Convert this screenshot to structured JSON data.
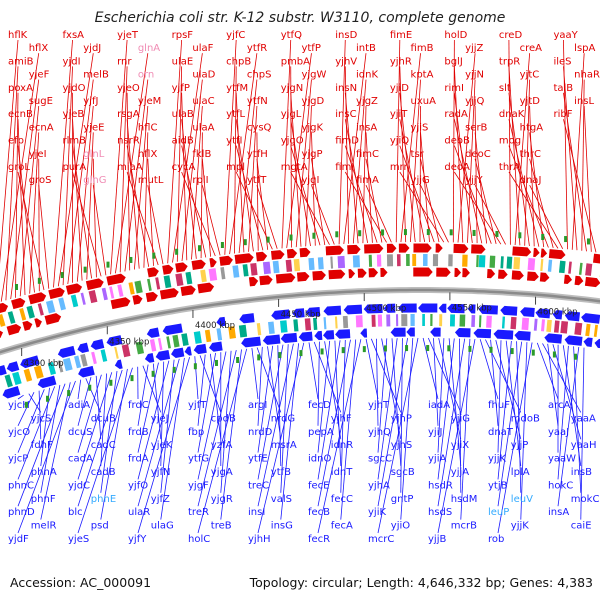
{
  "title": "Escherichia coli str. K-12 substr. W3110, complete genome",
  "footer": {
    "accession_label": "Accession: AC_000091",
    "stats": "Topology: circular; Length: 4,646,332 bp; Genes: 4,383"
  },
  "kbp_ticks": [
    "4300 kbp",
    "4350 kbp",
    "4400 kbp",
    "4450 kbp",
    "4500 kbp",
    "4550 kbp",
    "4600 kbp"
  ],
  "genes_top": [
    {
      "name": "hflK"
    },
    {
      "name": "hflX"
    },
    {
      "name": "amiB"
    },
    {
      "name": "yjeF"
    },
    {
      "name": "poxA"
    },
    {
      "name": "sugE"
    },
    {
      "name": "ecnB"
    },
    {
      "name": "ecnA"
    },
    {
      "name": "efp"
    },
    {
      "name": "yjeI"
    },
    {
      "name": "groL"
    },
    {
      "name": "groS"
    },
    {
      "name": "fxsA"
    },
    {
      "name": "yjdJ"
    },
    {
      "name": "yjdI"
    },
    {
      "name": "melB"
    },
    {
      "name": "yjdO"
    },
    {
      "name": "yjfJ"
    },
    {
      "name": "yjeB"
    },
    {
      "name": "yjeE"
    },
    {
      "name": "rlmB"
    },
    {
      "name": "glnL",
      "pale": true
    },
    {
      "name": "purA"
    },
    {
      "name": "glnG",
      "pale": true
    },
    {
      "name": "yjeT"
    },
    {
      "name": "glnA",
      "pale": true
    },
    {
      "name": "rnr"
    },
    {
      "name": "orn",
      "pale": true
    },
    {
      "name": "yjeO"
    },
    {
      "name": "yjeM"
    },
    {
      "name": "rsgA"
    },
    {
      "name": "hflC"
    },
    {
      "name": "nsrR"
    },
    {
      "name": "hflX"
    },
    {
      "name": "miaA"
    },
    {
      "name": "mutL"
    },
    {
      "name": "rpsF"
    },
    {
      "name": "ulaF"
    },
    {
      "name": "ulaE"
    },
    {
      "name": "ulaD"
    },
    {
      "name": "yjfP"
    },
    {
      "name": "ulaC"
    },
    {
      "name": "ulaB"
    },
    {
      "name": "ulaA"
    },
    {
      "name": "aidB"
    },
    {
      "name": "fklB"
    },
    {
      "name": "cycA"
    },
    {
      "name": "rplI"
    },
    {
      "name": "yjfC"
    },
    {
      "name": "ytfR"
    },
    {
      "name": "chpB"
    },
    {
      "name": "chpS"
    },
    {
      "name": "ytfM"
    },
    {
      "name": "ytfN"
    },
    {
      "name": "ytfL"
    },
    {
      "name": "cysQ"
    },
    {
      "name": "ytfI"
    },
    {
      "name": "ytfH"
    },
    {
      "name": "mpl"
    },
    {
      "name": "ytfT"
    },
    {
      "name": "ytfQ"
    },
    {
      "name": "ytfP"
    },
    {
      "name": "pmbA"
    },
    {
      "name": "yjgW"
    },
    {
      "name": "yjgN"
    },
    {
      "name": "yjgD"
    },
    {
      "name": "yjgL"
    },
    {
      "name": "yjgK"
    },
    {
      "name": "yjgO"
    },
    {
      "name": "yjgP"
    },
    {
      "name": "mgtA"
    },
    {
      "name": "yjgI"
    },
    {
      "name": "insD"
    },
    {
      "name": "intB"
    },
    {
      "name": "yjhV"
    },
    {
      "name": "idnK"
    },
    {
      "name": "insN"
    },
    {
      "name": "yjgZ"
    },
    {
      "name": "insC"
    },
    {
      "name": "insA"
    },
    {
      "name": "fimD"
    },
    {
      "name": "fimC"
    },
    {
      "name": "fimI"
    },
    {
      "name": "fimA"
    },
    {
      "name": "fimE"
    },
    {
      "name": "fimB"
    },
    {
      "name": "yjhR"
    },
    {
      "name": "kptA"
    },
    {
      "name": "yjiD"
    },
    {
      "name": "uxuA"
    },
    {
      "name": "yjiT"
    },
    {
      "name": "yjiS"
    },
    {
      "name": "yjiQ"
    },
    {
      "name": "tsr"
    },
    {
      "name": "mrr"
    },
    {
      "name": "yjjG"
    },
    {
      "name": "holD"
    },
    {
      "name": "yjjZ"
    },
    {
      "name": "bglJ"
    },
    {
      "name": "yjjN"
    },
    {
      "name": "rimI"
    },
    {
      "name": "yjjQ"
    },
    {
      "name": "radA"
    },
    {
      "name": "serB"
    },
    {
      "name": "deoB"
    },
    {
      "name": "deoC"
    },
    {
      "name": "deoA"
    },
    {
      "name": "yjjY"
    },
    {
      "name": "creD"
    },
    {
      "name": "creA"
    },
    {
      "name": "trpR"
    },
    {
      "name": "yjtC"
    },
    {
      "name": "slt"
    },
    {
      "name": "yjtD"
    },
    {
      "name": "dnaK"
    },
    {
      "name": "htgA"
    },
    {
      "name": "mog"
    },
    {
      "name": "thrC"
    },
    {
      "name": "thrA"
    },
    {
      "name": "dnaJ"
    },
    {
      "name": "yaaY"
    },
    {
      "name": "lspA"
    },
    {
      "name": "ileS"
    },
    {
      "name": "nhaR"
    },
    {
      "name": "talB"
    },
    {
      "name": "insL"
    },
    {
      "name": "ribF"
    }
  ],
  "genes_bottom": [
    {
      "name": "yjcH"
    },
    {
      "name": "yjcS"
    },
    {
      "name": "yjcO"
    },
    {
      "name": "fdhF"
    },
    {
      "name": "yjcP"
    },
    {
      "name": "phnA"
    },
    {
      "name": "phnC"
    },
    {
      "name": "phnF"
    },
    {
      "name": "phnD"
    },
    {
      "name": "melR"
    },
    {
      "name": "yjdF"
    },
    {
      "name": "adiA"
    },
    {
      "name": "dcuB"
    },
    {
      "name": "dcuS"
    },
    {
      "name": "cadC"
    },
    {
      "name": "cadA"
    },
    {
      "name": "cadB"
    },
    {
      "name": "yjdC"
    },
    {
      "name": "phnE",
      "pale": true
    },
    {
      "name": "blc"
    },
    {
      "name": "psd"
    },
    {
      "name": "yjeS"
    },
    {
      "name": "frdC"
    },
    {
      "name": "yjeJ"
    },
    {
      "name": "frdB"
    },
    {
      "name": "yjeK"
    },
    {
      "name": "frdA"
    },
    {
      "name": "yjfN"
    },
    {
      "name": "yjfO"
    },
    {
      "name": "yjfZ"
    },
    {
      "name": "ulaR"
    },
    {
      "name": "ulaG"
    },
    {
      "name": "yjfY"
    },
    {
      "name": "yjfT"
    },
    {
      "name": "cpdB"
    },
    {
      "name": "fbp"
    },
    {
      "name": "yzfA"
    },
    {
      "name": "ytfG"
    },
    {
      "name": "yjgA"
    },
    {
      "name": "yjgF"
    },
    {
      "name": "yjgR"
    },
    {
      "name": "treR"
    },
    {
      "name": "treB"
    },
    {
      "name": "holC"
    },
    {
      "name": "argI"
    },
    {
      "name": "nrdG"
    },
    {
      "name": "nrdD"
    },
    {
      "name": "msrA"
    },
    {
      "name": "ytfE"
    },
    {
      "name": "ytfB"
    },
    {
      "name": "treC"
    },
    {
      "name": "valS"
    },
    {
      "name": "insI"
    },
    {
      "name": "insG"
    },
    {
      "name": "yjhH"
    },
    {
      "name": "fecD"
    },
    {
      "name": "yjhF"
    },
    {
      "name": "pepA"
    },
    {
      "name": "idnR"
    },
    {
      "name": "idnO"
    },
    {
      "name": "idnT"
    },
    {
      "name": "fecE"
    },
    {
      "name": "fecC"
    },
    {
      "name": "fecB"
    },
    {
      "name": "fecA"
    },
    {
      "name": "fecR"
    },
    {
      "name": "yjhT"
    },
    {
      "name": "yjhP"
    },
    {
      "name": "yjhQ"
    },
    {
      "name": "yjhS"
    },
    {
      "name": "sgcC"
    },
    {
      "name": "sgcB"
    },
    {
      "name": "yjhA"
    },
    {
      "name": "gntP"
    },
    {
      "name": "yjiK"
    },
    {
      "name": "yjiO"
    },
    {
      "name": "mcrC"
    },
    {
      "name": "iadA"
    },
    {
      "name": "yjiG"
    },
    {
      "name": "yjiJ"
    },
    {
      "name": "yjiX"
    },
    {
      "name": "yjiA"
    },
    {
      "name": "yjjA"
    },
    {
      "name": "hsdR"
    },
    {
      "name": "hsdM"
    },
    {
      "name": "hsdS"
    },
    {
      "name": "mcrB"
    },
    {
      "name": "yjjB"
    },
    {
      "name": "fhuF"
    },
    {
      "name": "mdoB"
    },
    {
      "name": "dnaT"
    },
    {
      "name": "yjjP"
    },
    {
      "name": "yjjK"
    },
    {
      "name": "lplA"
    },
    {
      "name": "ytjB"
    },
    {
      "name": "leuV",
      "pale": true
    },
    {
      "name": "leuP",
      "pale": true
    },
    {
      "name": "yjjK"
    },
    {
      "name": "rob"
    },
    {
      "name": "arcA"
    },
    {
      "name": "yaaA"
    },
    {
      "name": "yaaJ"
    },
    {
      "name": "yaaH"
    },
    {
      "name": "yaaW"
    },
    {
      "name": "insB"
    },
    {
      "name": "hokC"
    },
    {
      "name": "mokC"
    },
    {
      "name": "insA"
    },
    {
      "name": "caiE"
    }
  ],
  "colors": {
    "plus_strand": "#e00000",
    "minus_strand": "#1a1aff",
    "backbone": "#8a8a8a",
    "tick": "#2a9a2a"
  }
}
